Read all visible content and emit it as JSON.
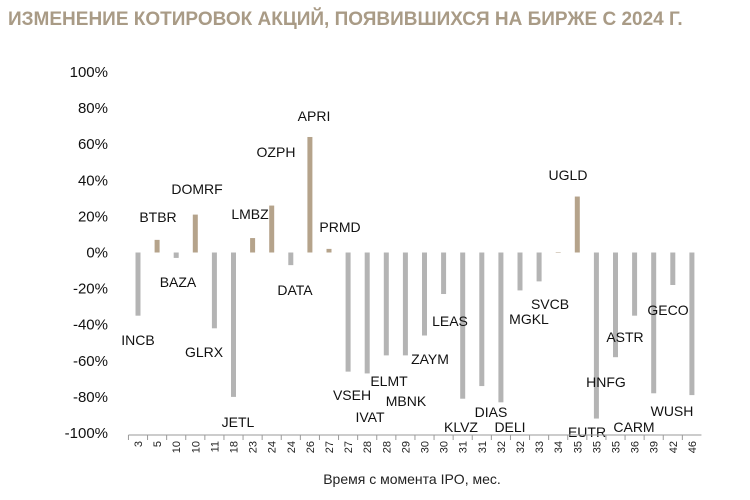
{
  "colors": {
    "positive": "#b5a38b",
    "negative": "#b4b4b4",
    "title": "#a99b86"
  },
  "chart_data": {
    "type": "bar",
    "title": "ИЗМЕНЕНИЕ КОТИРОВОК АКЦИЙ, ПОЯВИВШИХСЯ НА БИРЖЕ С 2024 Г.",
    "xlabel": "Время с момента IPO, мес.",
    "ylabel": "",
    "ylim": [
      -100,
      100
    ],
    "yticks": [
      "100%",
      "80%",
      "60%",
      "40%",
      "20%",
      "0%",
      "-20%",
      "-40%",
      "-60%",
      "-80%",
      "-100%"
    ],
    "ytick_values": [
      100,
      80,
      60,
      40,
      20,
      0,
      -20,
      -40,
      -60,
      -80,
      -100
    ],
    "categories": [
      "3",
      "5",
      "10",
      "10",
      "11",
      "18",
      "23",
      "24",
      "24",
      "26",
      "27",
      "27",
      "28",
      "28",
      "29",
      "30",
      "30",
      "31",
      "31",
      "32",
      "32",
      "33",
      "34",
      "35",
      "35",
      "35",
      "36",
      "39",
      "42",
      "46"
    ],
    "labels": [
      "INCB",
      "BTBR",
      "BAZA",
      "DOMRF",
      "GLRX",
      "JETL",
      "LMBZ",
      "OZPH",
      "DATA",
      "APRI",
      "PRMD",
      "VSEH",
      "IVAT",
      "ELMT",
      "MBNK",
      "ZAYM",
      "LEAS",
      "KLVZ",
      "DIAS",
      "DELI",
      "MGKL",
      "SVCB",
      "",
      "UGLD",
      "EUTR",
      "HNFG",
      "ASTR",
      "CARM",
      "GECO",
      "WUSH"
    ],
    "values": [
      -35,
      7,
      -3,
      21,
      -42,
      -80,
      8,
      26,
      -7,
      64,
      2,
      -66,
      -67,
      -57,
      -57,
      -46,
      -23,
      -81,
      -74,
      -83,
      -21,
      -16,
      0,
      31,
      -92,
      -58,
      -35,
      -78,
      -18,
      -79
    ],
    "grid": false,
    "legend": "none"
  }
}
